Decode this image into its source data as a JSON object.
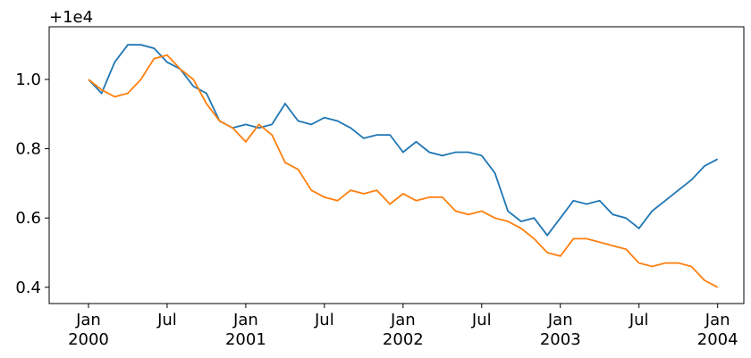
{
  "chart_data": {
    "type": "line",
    "offset_label": "+1e4",
    "x": [
      "2000-01",
      "2000-02",
      "2000-03",
      "2000-04",
      "2000-05",
      "2000-06",
      "2000-07",
      "2000-08",
      "2000-09",
      "2000-10",
      "2000-11",
      "2000-12",
      "2001-01",
      "2001-02",
      "2001-03",
      "2001-04",
      "2001-05",
      "2001-06",
      "2001-07",
      "2001-08",
      "2001-09",
      "2001-10",
      "2001-11",
      "2001-12",
      "2002-01",
      "2002-02",
      "2002-03",
      "2002-04",
      "2002-05",
      "2002-06",
      "2002-07",
      "2002-08",
      "2002-09",
      "2002-10",
      "2002-11",
      "2002-12",
      "2003-01",
      "2003-02",
      "2003-03",
      "2003-04",
      "2003-05",
      "2003-06",
      "2003-07",
      "2003-08",
      "2003-09",
      "2003-10",
      "2003-11",
      "2003-12",
      "2004-01"
    ],
    "series": [
      {
        "color": "#1f77b4",
        "values": [
          1.0,
          0.96,
          1.05,
          1.1,
          1.1,
          1.09,
          1.05,
          1.03,
          0.98,
          0.96,
          0.88,
          0.86,
          0.87,
          0.86,
          0.87,
          0.93,
          0.88,
          0.87,
          0.89,
          0.88,
          0.86,
          0.83,
          0.84,
          0.84,
          0.79,
          0.82,
          0.79,
          0.78,
          0.79,
          0.79,
          0.78,
          0.73,
          0.62,
          0.59,
          0.6,
          0.55,
          0.6,
          0.65,
          0.64,
          0.65,
          0.61,
          0.6,
          0.57,
          0.62,
          0.65,
          0.68,
          0.71,
          0.75,
          0.77
        ]
      },
      {
        "color": "#ff7f0e",
        "values": [
          1.0,
          0.97,
          0.95,
          0.96,
          1.0,
          1.06,
          1.07,
          1.03,
          1.0,
          0.93,
          0.88,
          0.86,
          0.82,
          0.87,
          0.84,
          0.76,
          0.74,
          0.68,
          0.66,
          0.65,
          0.68,
          0.67,
          0.68,
          0.64,
          0.67,
          0.65,
          0.66,
          0.66,
          0.62,
          0.61,
          0.62,
          0.6,
          0.59,
          0.57,
          0.54,
          0.5,
          0.49,
          0.54,
          0.54,
          0.53,
          0.52,
          0.51,
          0.47,
          0.46,
          0.47,
          0.47,
          0.46,
          0.42,
          0.4
        ]
      }
    ],
    "xlim": [
      "1999-10",
      "2004-03"
    ],
    "xticks": [
      {
        "value": "2000-01",
        "label": [
          "Jan",
          "2000"
        ]
      },
      {
        "value": "2000-07",
        "label": [
          "Jul"
        ]
      },
      {
        "value": "2001-01",
        "label": [
          "Jan",
          "2001"
        ]
      },
      {
        "value": "2001-07",
        "label": [
          "Jul"
        ]
      },
      {
        "value": "2002-01",
        "label": [
          "Jan",
          "2002"
        ]
      },
      {
        "value": "2002-07",
        "label": [
          "Jul"
        ]
      },
      {
        "value": "2003-01",
        "label": [
          "Jan",
          "2003"
        ]
      },
      {
        "value": "2003-07",
        "label": [
          "Jul"
        ]
      },
      {
        "value": "2004-01",
        "label": [
          "Jan",
          "2004"
        ]
      }
    ],
    "ylim": [
      0.353,
      1.152
    ],
    "yticks": [
      0.4,
      0.6,
      0.8,
      {
        "value": 1.0,
        "label": "1.0"
      }
    ]
  }
}
